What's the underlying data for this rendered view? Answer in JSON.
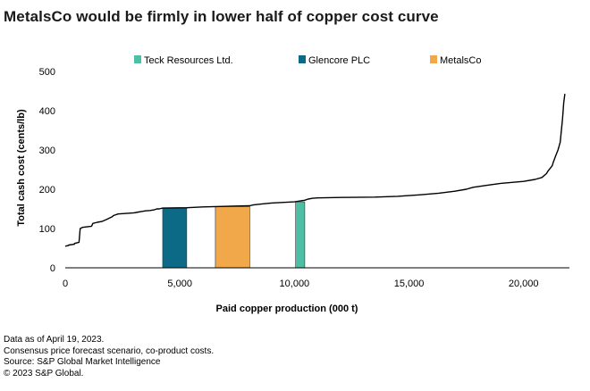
{
  "title": "MetalsCo would be firmly in lower half of copper cost curve",
  "chart_data": {
    "type": "line",
    "xlabel": "Paid copper production (000 t)",
    "ylabel": "Total cash cost (cents/lb)",
    "xlim": [
      0,
      22000
    ],
    "ylim": [
      0,
      550
    ],
    "xticks": [
      0,
      5000,
      10000,
      15000,
      20000
    ],
    "xtick_labels": [
      "0",
      "5,000",
      "10,000",
      "15,000",
      "20,000"
    ],
    "yticks": [
      0,
      100,
      200,
      300,
      400,
      500
    ],
    "ytick_labels": [
      "0",
      "100",
      "200",
      "300",
      "400",
      "500"
    ],
    "grid": false,
    "legend_position": "top",
    "legend": [
      {
        "name": "Teck Resources Ltd.",
        "color": "#4dbfa5"
      },
      {
        "name": "Glencore PLC",
        "color": "#0d6a86"
      },
      {
        "name": "MetalsCo",
        "color": "#f0a84a"
      }
    ],
    "highlights": [
      {
        "name": "Glencore PLC",
        "x_start": 4250,
        "x_end": 5300,
        "value": 152,
        "color": "#0d6a86"
      },
      {
        "name": "MetalsCo",
        "x_start": 6550,
        "x_end": 8050,
        "value": 156,
        "color": "#f0a84a"
      },
      {
        "name": "Teck Resources Ltd.",
        "x_start": 10050,
        "x_end": 10450,
        "value": 168,
        "color": "#4dbfa5"
      }
    ],
    "series": [
      {
        "x": [
          0,
          150,
          150,
          400,
          400,
          600,
          650,
          750,
          1150,
          1200,
          1400,
          1600,
          1800,
          2050,
          2100,
          2200,
          2300,
          3000,
          3200,
          3300,
          3500,
          3700,
          3900,
          4000,
          4100,
          4250,
          5300,
          6000,
          6550,
          8050,
          8200,
          8500,
          9000,
          10000,
          10450,
          10600,
          10800,
          11000,
          12000,
          13500,
          14500,
          15500,
          16300,
          17000,
          17500,
          17800,
          18400,
          19000,
          20000,
          20500,
          20800,
          21000,
          21050,
          21250,
          21300,
          21400,
          21500,
          21600,
          21650,
          21700,
          21750,
          21800
        ],
        "y": [
          55,
          57,
          58,
          60,
          62,
          65,
          100,
          103,
          106,
          113,
          116,
          118,
          123,
          130,
          133,
          135,
          137,
          140,
          142,
          143,
          145,
          146,
          148,
          150,
          150,
          152,
          153,
          155,
          156,
          158,
          160,
          162,
          165,
          168,
          172,
          175,
          177,
          178,
          179,
          180,
          182,
          186,
          190,
          195,
          200,
          205,
          210,
          215,
          220,
          225,
          230,
          240,
          245,
          260,
          270,
          285,
          300,
          320,
          350,
          380,
          420,
          443
        ]
      }
    ]
  }
}
